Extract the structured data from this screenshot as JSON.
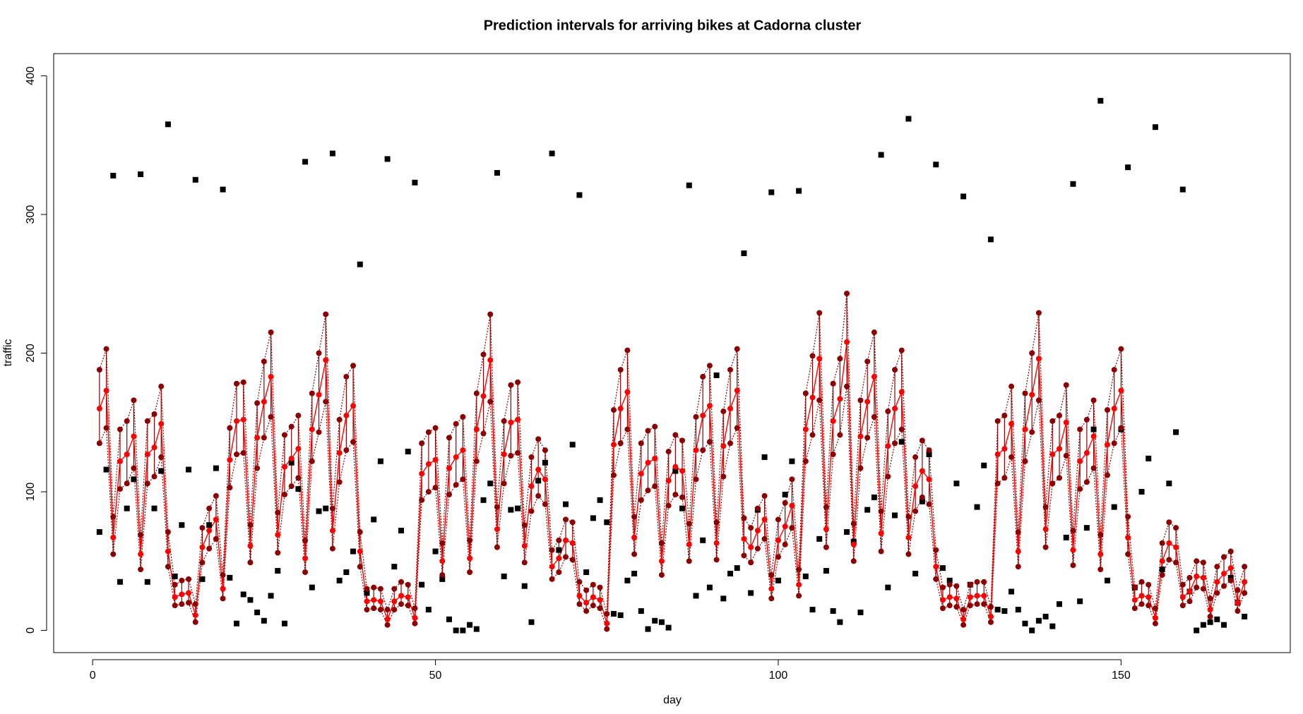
{
  "chart_data": {
    "type": "line",
    "title": "Prediction intervals for arriving bikes at Cadorna cluster",
    "x_label": "day",
    "y_label": "traffic",
    "xlim": [
      -5.68,
      174.68
    ],
    "xticks": [
      0,
      50,
      100,
      150
    ],
    "ylim": [
      -16,
      416
    ],
    "yticks": [
      0,
      100,
      200,
      300,
      400
    ],
    "grid": false,
    "interval_bars": true,
    "x": [
      1,
      2,
      3,
      4,
      5,
      6,
      7,
      8,
      9,
      10,
      11,
      12,
      13,
      14,
      15,
      16,
      17,
      18,
      19,
      20,
      21,
      22,
      23,
      24,
      25,
      26,
      27,
      28,
      29,
      30,
      31,
      32,
      33,
      34,
      35,
      36,
      37,
      38,
      39,
      40,
      41,
      42,
      43,
      44,
      45,
      46,
      47,
      48,
      49,
      50,
      51,
      52,
      53,
      54,
      55,
      56,
      57,
      58,
      59,
      60,
      61,
      62,
      63,
      64,
      65,
      66,
      67,
      68,
      69,
      70,
      71,
      72,
      73,
      74,
      75,
      76,
      77,
      78,
      79,
      80,
      81,
      82,
      83,
      84,
      85,
      86,
      87,
      88,
      89,
      90,
      91,
      92,
      93,
      94,
      95,
      96,
      97,
      98,
      99,
      100,
      101,
      102,
      103,
      104,
      105,
      106,
      107,
      108,
      109,
      110,
      111,
      112,
      113,
      114,
      115,
      116,
      117,
      118,
      119,
      120,
      121,
      122,
      123,
      124,
      125,
      126,
      127,
      128,
      129,
      130,
      131,
      132,
      133,
      134,
      135,
      136,
      137,
      138,
      139,
      140,
      141,
      142,
      143,
      144,
      145,
      146,
      147,
      148,
      149,
      150,
      151,
      152,
      153,
      154,
      155,
      156,
      157,
      158,
      159,
      160,
      161,
      162,
      163,
      164,
      165,
      166,
      167,
      168
    ],
    "series": [
      {
        "color": "#000000",
        "marker": "square",
        "line": null,
        "values": [
          71,
          116,
          328,
          35,
          88,
          109,
          329,
          35,
          88,
          115,
          365,
          39,
          76,
          116,
          325,
          37,
          76,
          117,
          318,
          38,
          5,
          26,
          22,
          13,
          7,
          25,
          43,
          5,
          121,
          102,
          338,
          31,
          86,
          88,
          344,
          36,
          42,
          57,
          264,
          27,
          80,
          122,
          340,
          46,
          72,
          129,
          323,
          33,
          15,
          57,
          37,
          8,
          0,
          0,
          4,
          1,
          94,
          106,
          330,
          39,
          87,
          88,
          32,
          6,
          108,
          121,
          344,
          58,
          91,
          134,
          314,
          42,
          81,
          94,
          78,
          12,
          11,
          36,
          41,
          14,
          1,
          7,
          6,
          2,
          115,
          88,
          321,
          25,
          65,
          31,
          184,
          23,
          41,
          45,
          272,
          27,
          87,
          125,
          316,
          36,
          98,
          122,
          317,
          39,
          15,
          66,
          43,
          14,
          6,
          71,
          64,
          13,
          87,
          96,
          343,
          31,
          83,
          136,
          369,
          41,
          93,
          127,
          336,
          45,
          36,
          106,
          313,
          33,
          89,
          119,
          282,
          15,
          14,
          28,
          15,
          5,
          0,
          7,
          10,
          3,
          19,
          67,
          322,
          21,
          74,
          145,
          382,
          36,
          89,
          145,
          334,
          31,
          100,
          124,
          363,
          44,
          106,
          143,
          318,
          28,
          0,
          4,
          6,
          8,
          4,
          38,
          20,
          10
        ]
      },
      {
        "color": "#8b0000",
        "marker": "circle",
        "line": "dotted",
        "band": "lower",
        "values": [
          135,
          146,
          55,
          102,
          106,
          117,
          44,
          106,
          111,
          125,
          46,
          18,
          19,
          20,
          6,
          49,
          59,
          66,
          23,
          103,
          127,
          128,
          49,
          117,
          139,
          154,
          56,
          98,
          104,
          110,
          42,
          122,
          143,
          165,
          59,
          107,
          130,
          136,
          46,
          15,
          16,
          15,
          4,
          15,
          19,
          18,
          5,
          94,
          100,
          103,
          40,
          98,
          105,
          109,
          42,
          122,
          142,
          165,
          60,
          106,
          126,
          128,
          49,
          86,
          97,
          91,
          37,
          42,
          53,
          51,
          19,
          14,
          18,
          16,
          1,
          112,
          135,
          145,
          55,
          94,
          101,
          104,
          40,
          90,
          98,
          96,
          50,
          109,
          130,
          136,
          51,
          111,
          135,
          146,
          54,
          49,
          59,
          66,
          23,
          53,
          62,
          74,
          25,
          122,
          141,
          166,
          60,
          127,
          141,
          176,
          50,
          117,
          139,
          154,
          57,
          111,
          135,
          145,
          55,
          86,
          96,
          91,
          37,
          16,
          18,
          17,
          4,
          18,
          19,
          19,
          6,
          106,
          110,
          125,
          46,
          122,
          143,
          166,
          60,
          106,
          110,
          126,
          47,
          102,
          107,
          117,
          44,
          112,
          135,
          146,
          55,
          16,
          19,
          18,
          5,
          40,
          51,
          49,
          18,
          21,
          31,
          30,
          10,
          27,
          32,
          36,
          14,
          27
        ]
      },
      {
        "color": "#8b0000",
        "marker": "circle",
        "line": "dotted",
        "band": "upper",
        "values": [
          188,
          203,
          82,
          145,
          151,
          166,
          69,
          151,
          156,
          176,
          71,
          33,
          36,
          37,
          19,
          74,
          88,
          97,
          40,
          146,
          178,
          179,
          76,
          164,
          194,
          215,
          85,
          141,
          147,
          155,
          65,
          171,
          200,
          228,
          88,
          152,
          183,
          191,
          71,
          30,
          31,
          30,
          15,
          30,
          35,
          33,
          16,
          135,
          143,
          146,
          63,
          139,
          149,
          154,
          65,
          171,
          199,
          228,
          89,
          151,
          177,
          179,
          76,
          125,
          138,
          130,
          58,
          65,
          80,
          78,
          35,
          29,
          33,
          31,
          12,
          159,
          188,
          202,
          82,
          135,
          144,
          147,
          63,
          129,
          141,
          137,
          77,
          154,
          183,
          191,
          78,
          158,
          188,
          203,
          81,
          74,
          88,
          97,
          40,
          80,
          92,
          109,
          44,
          171,
          198,
          229,
          89,
          178,
          196,
          243,
          77,
          166,
          194,
          215,
          86,
          158,
          188,
          202,
          82,
          125,
          137,
          130,
          58,
          31,
          33,
          32,
          15,
          33,
          35,
          35,
          17,
          151,
          155,
          176,
          71,
          171,
          200,
          229,
          89,
          151,
          155,
          177,
          72,
          145,
          152,
          166,
          69,
          159,
          188,
          203,
          82,
          31,
          35,
          33,
          16,
          63,
          78,
          74,
          33,
          38,
          50,
          49,
          23,
          46,
          53,
          57,
          29,
          46
        ]
      },
      {
        "color": "#ff0000",
        "marker": "circle",
        "line": "solid",
        "values": [
          160,
          173,
          67,
          122,
          127,
          140,
          55,
          127,
          132,
          149,
          57,
          24,
          26,
          27,
          11,
          60,
          72,
          80,
          30,
          123,
          151,
          152,
          61,
          139,
          165,
          183,
          69,
          118,
          124,
          131,
          52,
          145,
          170,
          195,
          72,
          128,
          155,
          162,
          57,
          21,
          22,
          21,
          8,
          21,
          25,
          24,
          9,
          113,
          120,
          123,
          50,
          117,
          125,
          130,
          52,
          145,
          169,
          195,
          73,
          127,
          150,
          152,
          61,
          104,
          116,
          109,
          46,
          52,
          65,
          63,
          25,
          20,
          24,
          22,
          5,
          134,
          160,
          172,
          67,
          113,
          121,
          124,
          50,
          108,
          118,
          115,
          62,
          130,
          155,
          162,
          63,
          133,
          160,
          173,
          66,
          60,
          72,
          80,
          30,
          65,
          75,
          90,
          33,
          145,
          168,
          196,
          73,
          151,
          167,
          208,
          62,
          140,
          165,
          183,
          70,
          133,
          160,
          172,
          67,
          104,
          115,
          109,
          46,
          22,
          24,
          23,
          8,
          24,
          25,
          25,
          10,
          127,
          131,
          149,
          57,
          145,
          170,
          196,
          73,
          127,
          131,
          150,
          58,
          122,
          128,
          140,
          55,
          134,
          160,
          173,
          67,
          22,
          25,
          24,
          9,
          50,
          63,
          60,
          24,
          28,
          39,
          38,
          15,
          35,
          41,
          45,
          20,
          35
        ]
      }
    ]
  }
}
